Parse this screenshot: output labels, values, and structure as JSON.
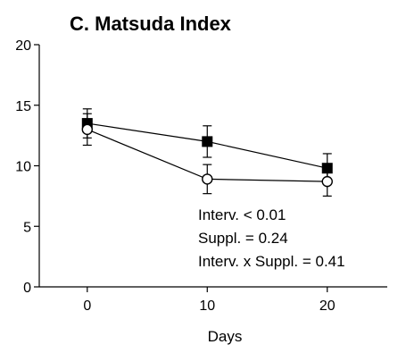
{
  "chart_data": {
    "type": "line",
    "title": "C. Matsuda Index",
    "xlabel": "Days",
    "ylabel": "",
    "x": [
      0,
      10,
      20
    ],
    "xticks": [
      "0",
      "10",
      "20"
    ],
    "yticks": [
      "0",
      "5",
      "10",
      "15",
      "20"
    ],
    "xlim": [
      -4,
      25
    ],
    "ylim": [
      0,
      20
    ],
    "series": [
      {
        "marker": "filled-square",
        "color": "#000000",
        "values": [
          13.5,
          12.0,
          9.8
        ],
        "errors": [
          1.2,
          1.3,
          1.2
        ]
      },
      {
        "marker": "open-circle",
        "color": "#000000",
        "values": [
          13.0,
          8.9,
          8.7
        ],
        "errors": [
          1.3,
          1.2,
          1.2
        ]
      }
    ],
    "annotations": [
      "Interv. < 0.01",
      "Suppl. = 0.24",
      "Interv. x Suppl. = 0.41"
    ]
  }
}
